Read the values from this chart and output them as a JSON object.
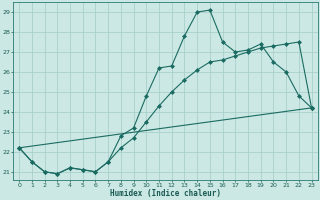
{
  "xlabel": "Humidex (Indice chaleur)",
  "background_color": "#cce8e4",
  "grid_color": "#aacfcc",
  "line_color": "#1a6b62",
  "xlim": [
    -0.5,
    23.5
  ],
  "ylim": [
    20.6,
    29.5
  ],
  "xticks": [
    0,
    1,
    2,
    3,
    4,
    5,
    6,
    7,
    8,
    9,
    10,
    11,
    12,
    13,
    14,
    15,
    16,
    17,
    18,
    19,
    20,
    21,
    22,
    23
  ],
  "yticks": [
    21,
    22,
    23,
    24,
    25,
    26,
    27,
    28,
    29
  ],
  "line1_x": [
    0,
    1,
    2,
    3,
    4,
    5,
    6,
    7,
    8,
    9,
    10,
    11,
    12,
    13,
    14,
    15,
    16,
    17,
    18,
    19,
    20,
    21,
    22,
    23
  ],
  "line1_y": [
    22.2,
    21.5,
    21.0,
    20.9,
    21.2,
    21.1,
    21.0,
    21.5,
    22.8,
    23.2,
    24.8,
    26.2,
    26.3,
    27.8,
    29.0,
    29.1,
    27.5,
    27.0,
    27.1,
    27.4,
    26.5,
    26.0,
    24.8,
    24.2
  ],
  "line2_x": [
    0,
    1,
    2,
    3,
    4,
    5,
    6,
    7,
    8,
    9,
    10,
    11,
    12,
    13,
    14,
    15,
    16,
    17,
    18,
    19,
    20,
    21,
    22,
    23
  ],
  "line2_y": [
    22.2,
    21.5,
    21.0,
    20.9,
    21.2,
    21.1,
    21.0,
    21.5,
    22.2,
    22.7,
    23.5,
    24.3,
    25.0,
    25.6,
    26.1,
    26.5,
    26.6,
    26.8,
    27.0,
    27.2,
    27.3,
    27.4,
    27.5,
    24.2
  ],
  "line3_x": [
    0,
    23
  ],
  "line3_y": [
    22.2,
    24.2
  ]
}
